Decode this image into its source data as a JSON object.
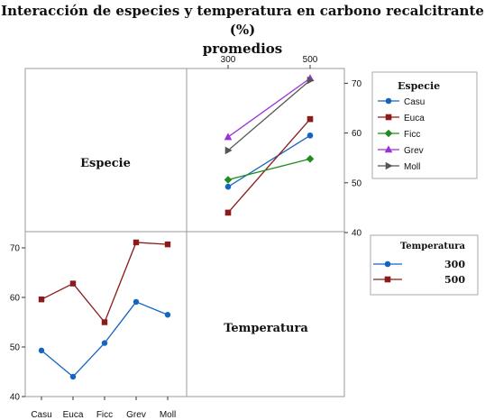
{
  "title_lines": [
    "Interacción de especies y temperatura en carbono recalcitrante (%)",
    "promedios"
  ],
  "labels": {
    "species_cell": "Especie",
    "temperature_cell": "Temperatura"
  },
  "colors": {
    "300": "#1565c0",
    "500": "#8b1a1a",
    "Casu": "#1565c0",
    "Euca": "#8b1a1a",
    "Ficc": "#1e8c1e",
    "Grev": "#9b30d9",
    "Moll": "#555555"
  },
  "legends": [
    {
      "title": "Especie",
      "entries": [
        {
          "label": "Casu",
          "marker": "circle"
        },
        {
          "label": "Euca",
          "marker": "square"
        },
        {
          "label": "Ficc",
          "marker": "diamond"
        },
        {
          "label": "Grev",
          "marker": "triangle-up"
        },
        {
          "label": "Moll",
          "marker": "triangle-right"
        }
      ]
    },
    {
      "title": "Temperatura",
      "entries": [
        {
          "label": "300",
          "marker": "circle"
        },
        {
          "label": "500",
          "marker": "square"
        }
      ]
    }
  ],
  "chart_data": [
    {
      "type": "line",
      "panel": "top-right",
      "x": [
        "300",
        "500"
      ],
      "x_axis_position": "top",
      "y_axis_position": "right",
      "ylim": [
        40,
        73
      ],
      "yticks": [
        40,
        50,
        60,
        70
      ],
      "series": [
        {
          "name": "Casu",
          "values": [
            49.2,
            59.5
          ]
        },
        {
          "name": "Euca",
          "values": [
            44.0,
            62.8
          ]
        },
        {
          "name": "Ficc",
          "values": [
            50.6,
            54.8
          ]
        },
        {
          "name": "Grev",
          "values": [
            59.2,
            71.0
          ]
        },
        {
          "name": "Moll",
          "values": [
            56.5,
            70.6
          ]
        }
      ]
    },
    {
      "type": "line",
      "panel": "bottom-left",
      "categories": [
        "Casu",
        "Euca",
        "Ficc",
        "Grev",
        "Moll"
      ],
      "ylim": [
        40,
        73
      ],
      "yticks": [
        40,
        50,
        60,
        70
      ],
      "series": [
        {
          "name": "300",
          "values": [
            49.3,
            44.0,
            50.8,
            59.1,
            56.5
          ]
        },
        {
          "name": "500",
          "values": [
            59.6,
            62.8,
            55.0,
            71.1,
            70.7
          ]
        }
      ]
    }
  ]
}
